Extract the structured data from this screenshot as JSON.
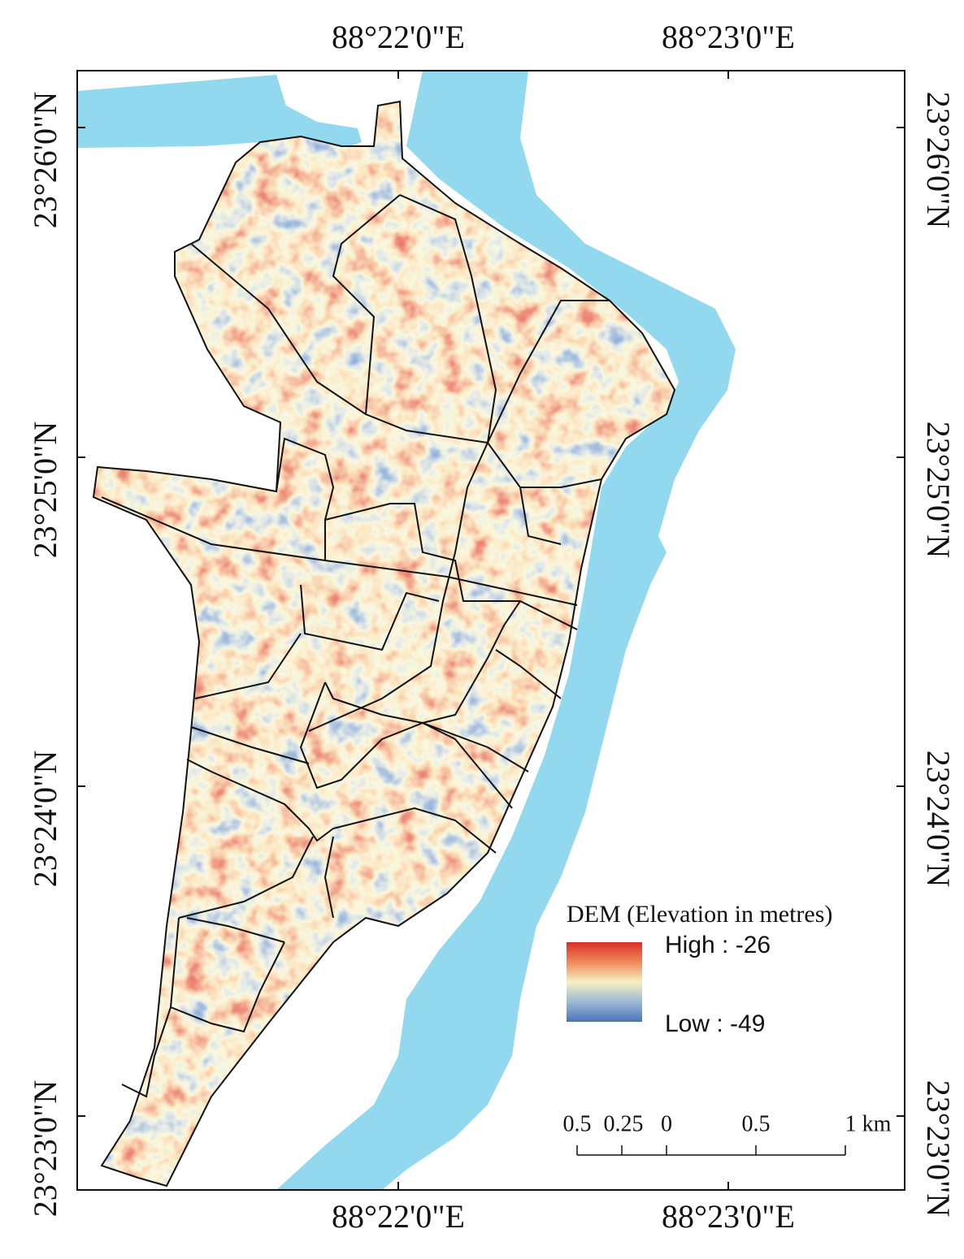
{
  "map": {
    "top_labels": [
      "88°22'0\"E",
      "88°23'0\"E"
    ],
    "bottom_labels": [
      "88°22'0\"E",
      "88°23'0\"E"
    ],
    "left_labels": [
      "23°26'0\"N",
      "23°25'0\"N",
      "23°24'0\"N",
      "23°23'0\"N"
    ],
    "right_labels": [
      "23°26'0\"N",
      "23°25'0\"N",
      "23°24'0\"N",
      "23°23'0\"N"
    ],
    "legend": {
      "title": "DEM (Elevation in metres)",
      "high": "High : -26",
      "low": "Low : -49"
    },
    "scale_bar": {
      "labels": [
        "0.5",
        "0.25",
        "0",
        "0.5",
        "1 km"
      ]
    }
  }
}
